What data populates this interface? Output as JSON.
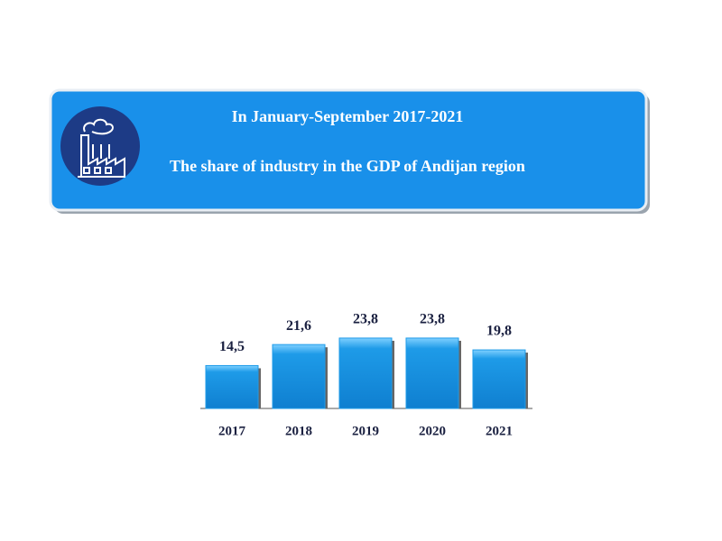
{
  "chart_data": {
    "type": "bar",
    "title": "In January-September 2017-2021",
    "subtitle": "The share of industry in the GDP of Andijan region",
    "categories": [
      "2017",
      "2018",
      "2019",
      "2020",
      "2021"
    ],
    "values": [
      14.5,
      21.6,
      23.8,
      23.8,
      19.8
    ],
    "value_labels": [
      "14,5",
      "21,6",
      "23,8",
      "23,8",
      "19,8"
    ],
    "color": "#1e9be8"
  }
}
